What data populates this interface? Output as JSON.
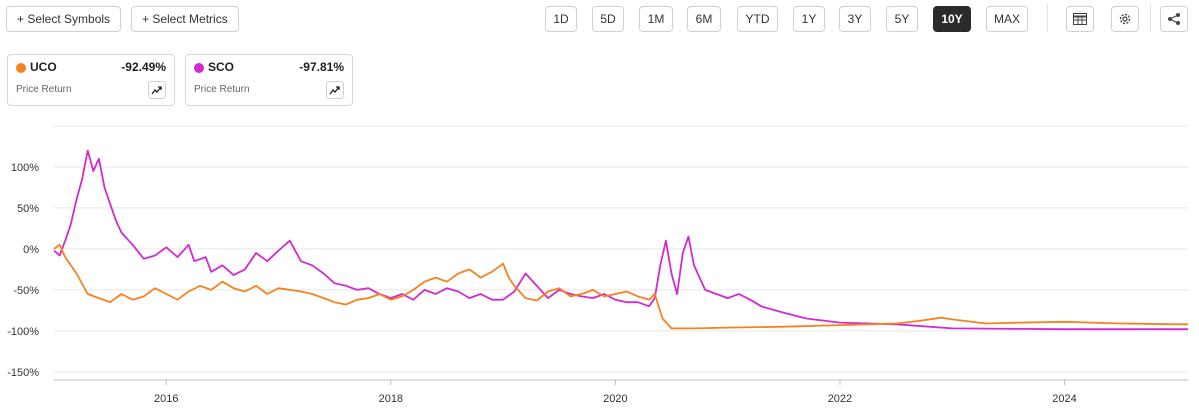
{
  "toolbar": {
    "select_symbols": "+ Select Symbols",
    "select_metrics": "+ Select Metrics",
    "ranges": [
      "1D",
      "5D",
      "1M",
      "6M",
      "YTD",
      "1Y",
      "3Y",
      "5Y",
      "10Y",
      "MAX"
    ],
    "active_range": "10Y",
    "icons": [
      "table-icon",
      "gear-icon",
      "share-icon"
    ]
  },
  "legend_cards": [
    {
      "symbol": "UCO",
      "change": "-92.49%",
      "metric": "Price Return",
      "color": "#f5821f"
    },
    {
      "symbol": "SCO",
      "change": "-97.81%",
      "metric": "Price Return",
      "color": "#d12ad1"
    }
  ],
  "chart_data": {
    "type": "line",
    "title": "",
    "xlabel": "",
    "ylabel": "",
    "x_ticks": [
      "2016",
      "2018",
      "2020",
      "2022",
      "2024"
    ],
    "y_ticks": [
      "100%",
      "50%",
      "0%",
      "-50%",
      "-100%",
      "-150%"
    ],
    "xlim": [
      2015.0,
      2025.1
    ],
    "ylim": [
      -160,
      150
    ],
    "grid": "horizontal",
    "series": [
      {
        "name": "UCO",
        "color": "#f5821f",
        "points": [
          [
            2015.0,
            0
          ],
          [
            2015.05,
            5
          ],
          [
            2015.1,
            -10
          ],
          [
            2015.2,
            -30
          ],
          [
            2015.3,
            -55
          ],
          [
            2015.4,
            -60
          ],
          [
            2015.5,
            -65
          ],
          [
            2015.6,
            -55
          ],
          [
            2015.7,
            -62
          ],
          [
            2015.8,
            -58
          ],
          [
            2015.9,
            -48
          ],
          [
            2016.0,
            -55
          ],
          [
            2016.1,
            -62
          ],
          [
            2016.2,
            -52
          ],
          [
            2016.3,
            -45
          ],
          [
            2016.4,
            -50
          ],
          [
            2016.5,
            -40
          ],
          [
            2016.6,
            -48
          ],
          [
            2016.7,
            -52
          ],
          [
            2016.8,
            -45
          ],
          [
            2016.9,
            -55
          ],
          [
            2017.0,
            -48
          ],
          [
            2017.1,
            -50
          ],
          [
            2017.2,
            -52
          ],
          [
            2017.3,
            -55
          ],
          [
            2017.4,
            -60
          ],
          [
            2017.5,
            -65
          ],
          [
            2017.6,
            -68
          ],
          [
            2017.7,
            -62
          ],
          [
            2017.8,
            -60
          ],
          [
            2017.9,
            -55
          ],
          [
            2018.0,
            -62
          ],
          [
            2018.1,
            -58
          ],
          [
            2018.2,
            -50
          ],
          [
            2018.3,
            -40
          ],
          [
            2018.4,
            -35
          ],
          [
            2018.5,
            -40
          ],
          [
            2018.6,
            -30
          ],
          [
            2018.7,
            -25
          ],
          [
            2018.8,
            -35
          ],
          [
            2018.9,
            -28
          ],
          [
            2019.0,
            -18
          ],
          [
            2019.05,
            -35
          ],
          [
            2019.1,
            -45
          ],
          [
            2019.2,
            -60
          ],
          [
            2019.3,
            -63
          ],
          [
            2019.4,
            -52
          ],
          [
            2019.5,
            -48
          ],
          [
            2019.6,
            -58
          ],
          [
            2019.7,
            -55
          ],
          [
            2019.8,
            -50
          ],
          [
            2019.9,
            -58
          ],
          [
            2020.0,
            -55
          ],
          [
            2020.1,
            -52
          ],
          [
            2020.2,
            -58
          ],
          [
            2020.3,
            -62
          ],
          [
            2020.35,
            -55
          ],
          [
            2020.42,
            -85
          ],
          [
            2020.5,
            -97
          ],
          [
            2020.7,
            -97
          ],
          [
            2021.0,
            -96
          ],
          [
            2021.5,
            -95
          ],
          [
            2022.0,
            -93
          ],
          [
            2022.5,
            -91
          ],
          [
            2022.7,
            -88
          ],
          [
            2022.9,
            -84
          ],
          [
            2023.0,
            -86
          ],
          [
            2023.3,
            -91
          ],
          [
            2023.6,
            -90
          ],
          [
            2024.0,
            -89
          ],
          [
            2024.5,
            -91
          ],
          [
            2025.0,
            -92
          ],
          [
            2025.1,
            -92
          ]
        ]
      },
      {
        "name": "SCO",
        "color": "#d12ad1",
        "points": [
          [
            2015.0,
            -2
          ],
          [
            2015.05,
            -8
          ],
          [
            2015.1,
            10
          ],
          [
            2015.15,
            30
          ],
          [
            2015.2,
            60
          ],
          [
            2015.25,
            85
          ],
          [
            2015.3,
            120
          ],
          [
            2015.35,
            95
          ],
          [
            2015.4,
            110
          ],
          [
            2015.45,
            75
          ],
          [
            2015.5,
            55
          ],
          [
            2015.55,
            35
          ],
          [
            2015.6,
            20
          ],
          [
            2015.7,
            5
          ],
          [
            2015.8,
            -12
          ],
          [
            2015.9,
            -8
          ],
          [
            2016.0,
            2
          ],
          [
            2016.1,
            -10
          ],
          [
            2016.2,
            5
          ],
          [
            2016.25,
            -15
          ],
          [
            2016.35,
            -10
          ],
          [
            2016.4,
            -28
          ],
          [
            2016.5,
            -20
          ],
          [
            2016.6,
            -32
          ],
          [
            2016.7,
            -25
          ],
          [
            2016.8,
            -5
          ],
          [
            2016.9,
            -15
          ],
          [
            2017.0,
            -2
          ],
          [
            2017.1,
            10
          ],
          [
            2017.2,
            -15
          ],
          [
            2017.3,
            -20
          ],
          [
            2017.4,
            -30
          ],
          [
            2017.5,
            -42
          ],
          [
            2017.6,
            -45
          ],
          [
            2017.7,
            -50
          ],
          [
            2017.8,
            -48
          ],
          [
            2017.9,
            -55
          ],
          [
            2018.0,
            -60
          ],
          [
            2018.1,
            -55
          ],
          [
            2018.2,
            -62
          ],
          [
            2018.3,
            -50
          ],
          [
            2018.4,
            -55
          ],
          [
            2018.5,
            -48
          ],
          [
            2018.6,
            -52
          ],
          [
            2018.7,
            -60
          ],
          [
            2018.8,
            -55
          ],
          [
            2018.9,
            -62
          ],
          [
            2019.0,
            -62
          ],
          [
            2019.1,
            -52
          ],
          [
            2019.2,
            -30
          ],
          [
            2019.3,
            -45
          ],
          [
            2019.4,
            -60
          ],
          [
            2019.5,
            -50
          ],
          [
            2019.6,
            -55
          ],
          [
            2019.7,
            -58
          ],
          [
            2019.8,
            -60
          ],
          [
            2019.9,
            -55
          ],
          [
            2020.0,
            -62
          ],
          [
            2020.1,
            -65
          ],
          [
            2020.2,
            -65
          ],
          [
            2020.3,
            -70
          ],
          [
            2020.35,
            -60
          ],
          [
            2020.4,
            -20
          ],
          [
            2020.45,
            10
          ],
          [
            2020.5,
            -30
          ],
          [
            2020.55,
            -55
          ],
          [
            2020.6,
            -5
          ],
          [
            2020.65,
            15
          ],
          [
            2020.7,
            -20
          ],
          [
            2020.8,
            -50
          ],
          [
            2020.9,
            -55
          ],
          [
            2021.0,
            -60
          ],
          [
            2021.1,
            -55
          ],
          [
            2021.2,
            -62
          ],
          [
            2021.3,
            -70
          ],
          [
            2021.5,
            -78
          ],
          [
            2021.7,
            -85
          ],
          [
            2022.0,
            -90
          ],
          [
            2022.5,
            -92
          ],
          [
            2023.0,
            -97
          ],
          [
            2024.0,
            -98
          ],
          [
            2025.1,
            -98
          ]
        ]
      }
    ]
  }
}
